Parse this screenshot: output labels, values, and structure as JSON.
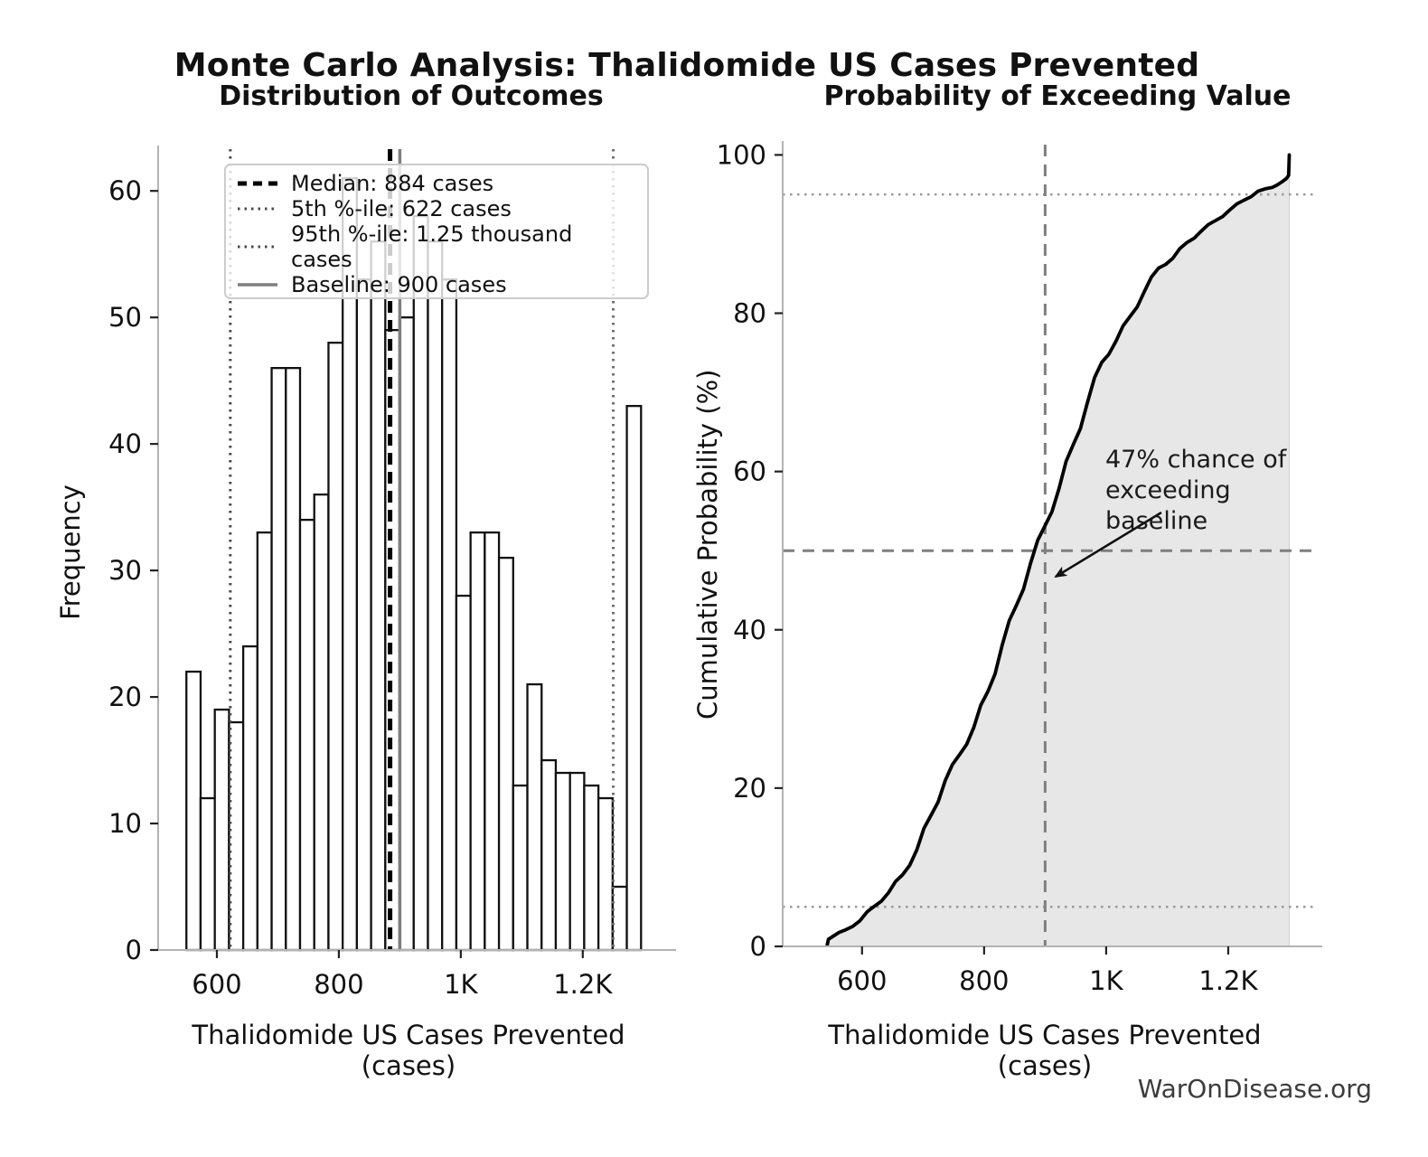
{
  "page": {
    "title": "Monte Carlo Analysis: Thalidomide US Cases Prevented",
    "watermark": "WarOnDisease.org"
  },
  "colors": {
    "bar_fill": "#ffffff",
    "bar_edge": "#111111",
    "median_line": "#000000",
    "percentile_line": "#4a4a4a",
    "baseline_line": "#7f7f7f",
    "cdf_line": "#000000",
    "cdf_fill": "#e7e7e7",
    "ref_dashed": "#7f7f7f",
    "ref_dotted": "#999999",
    "spine": "#b3b3b3",
    "tick": "#222222",
    "text": "#111111",
    "watermark": "#3c3c3c"
  },
  "legend": {
    "items": [
      {
        "style": "median",
        "label": "Median: 884 cases"
      },
      {
        "style": "dotted",
        "label": "5th %-ile: 622 cases"
      },
      {
        "style": "dotted",
        "label": "95th %-ile: 1.25 thousand cases"
      },
      {
        "style": "baseline",
        "label": "Baseline: 900 cases"
      }
    ]
  },
  "chart_data": [
    {
      "type": "bar",
      "subtype": "histogram",
      "title": "Distribution of Outcomes",
      "xlabel": "Thalidomide US Cases Prevented (cases)",
      "ylabel": "Frequency",
      "bin_start": 550,
      "bin_width": 23.3,
      "frequencies": [
        22,
        12,
        19,
        18,
        24,
        33,
        46,
        46,
        34,
        36,
        48,
        61,
        53,
        56,
        49,
        50,
        58,
        56,
        53,
        28,
        33,
        33,
        31,
        13,
        21,
        15,
        14,
        14,
        13,
        12,
        5,
        43
      ],
      "x_ticks": [
        {
          "value": 600,
          "label": "600"
        },
        {
          "value": 800,
          "label": "800"
        },
        {
          "value": 1000,
          "label": "1K"
        },
        {
          "value": 1200,
          "label": "1.2K"
        }
      ],
      "y_ticks": [
        0,
        10,
        20,
        30,
        40,
        50,
        60
      ],
      "xlim": [
        503.7,
        1326.3
      ],
      "ylim": [
        0,
        63.3
      ],
      "grid": false,
      "markers": {
        "median": 884,
        "p5": 622,
        "p95": 1250,
        "baseline": 900
      },
      "legend_position": "upper center"
    },
    {
      "type": "line",
      "subtype": "empirical-cdf",
      "title": "Probability of Exceeding Value",
      "xlabel": "Thalidomide US Cases Prevented (cases)",
      "ylabel": "Cumulative Probability (%)",
      "x_ticks": [
        {
          "value": 600,
          "label": "600"
        },
        {
          "value": 800,
          "label": "800"
        },
        {
          "value": 1000,
          "label": "1K"
        },
        {
          "value": 1200,
          "label": "1.2K"
        }
      ],
      "y_ticks": [
        0,
        20,
        40,
        60,
        80,
        100
      ],
      "xlim": [
        470,
        1327.4
      ],
      "ylim": [
        0,
        101.3
      ],
      "curve_source": "cumulative distribution of histogram frequencies in chart 0, rising from 0% near 545 cases to 100% at about 1300 cases, median 884 at 50%",
      "fill_under_curve": true,
      "ref_lines": {
        "horizontal_dashed_pct": 50,
        "horizontal_dotted_pct": [
          5,
          95
        ],
        "vertical_dashed_value": 900
      },
      "annotation": {
        "line1": "47% chance of",
        "line2": "exceeding baseline",
        "exceedance_pct": 47,
        "arrow_points_to": "CDF curve at baseline value"
      }
    }
  ]
}
